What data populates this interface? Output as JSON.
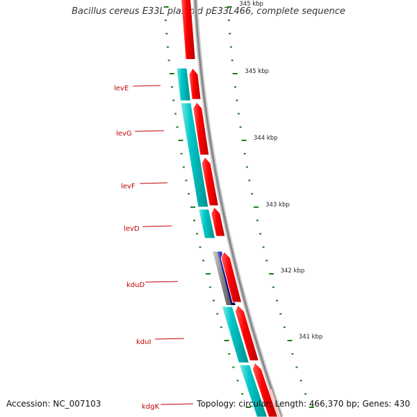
{
  "title": "Bacillus cereus E33L plasmid pE33L466, complete sequence",
  "footer": {
    "accession": "Accession: NC_007103",
    "topology": "Topology: circular; Length: 466,370 bp; Genes: 430"
  },
  "scale_labels": [
    "345 kbp",
    "345 kbp",
    "344 kbp",
    "343 kbp",
    "342 kbp",
    "341 kbp"
  ],
  "gene_labels": [
    "levE",
    "levG",
    "levF",
    "levD",
    "kduD",
    "kduI",
    "kdgK"
  ],
  "colors": {
    "reverse_strand_gene": "#00c8c8",
    "forward_strand_gene": "#ff0000",
    "highlight_gene": "#00008b",
    "backbone": "#888888",
    "tick": "#1a7a1a",
    "label": "#c00000"
  }
}
